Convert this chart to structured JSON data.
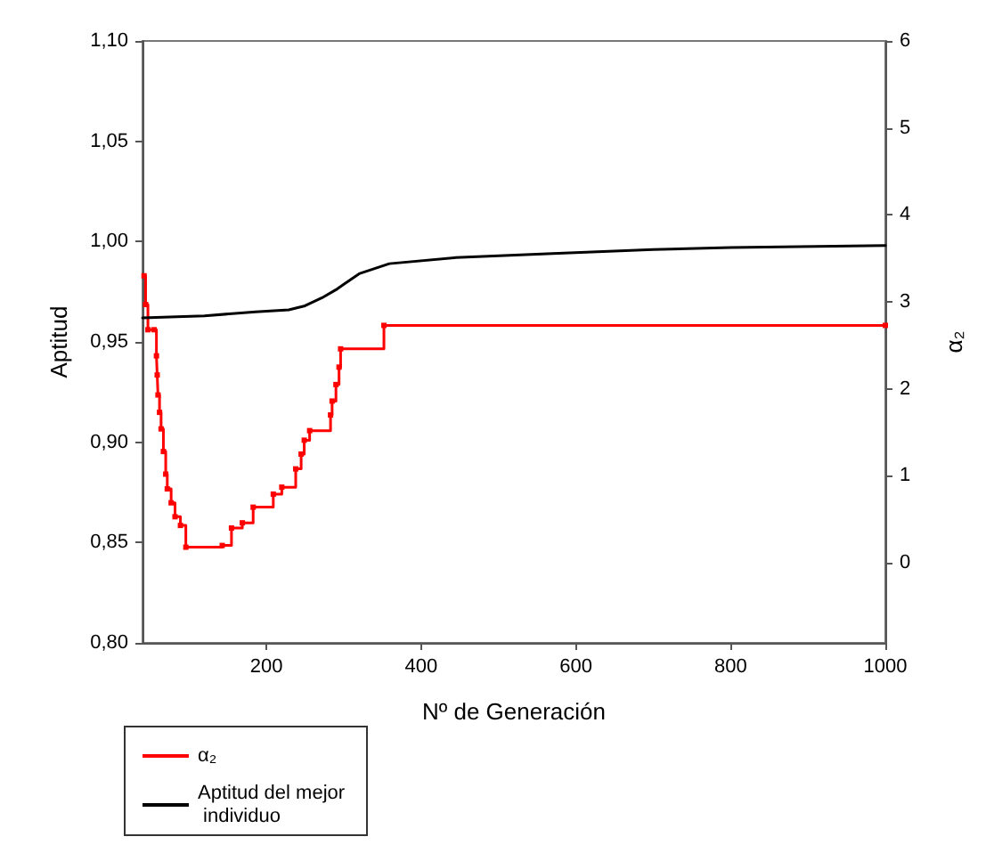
{
  "chart_data": {
    "type": "line",
    "xlabel": "Nº de Generación",
    "ylabel": "Aptitud",
    "y2label": "α₂",
    "xlim": [
      40,
      1000
    ],
    "xticks": [
      200,
      400,
      600,
      800,
      1000
    ],
    "ylim": [
      0.8,
      1.1
    ],
    "yticks": [
      {
        "value": 0.8,
        "label": "0,80"
      },
      {
        "value": 0.85,
        "label": "0,85"
      },
      {
        "value": 0.9,
        "label": "0,90"
      },
      {
        "value": 0.95,
        "label": "0,95"
      },
      {
        "value": 1.0,
        "label": "1,00"
      },
      {
        "value": 1.05,
        "label": "1,05"
      },
      {
        "value": 1.1,
        "label": "1,10"
      }
    ],
    "y2lim": [
      -0.92,
      6
    ],
    "y2ticks": [
      0,
      1,
      2,
      3,
      4,
      5,
      6
    ],
    "grid": false,
    "legend": "bottom left",
    "line_style": "solid",
    "series": [
      {
        "name": "α₂",
        "color": "#ff0000",
        "type": "step",
        "axis": "y2",
        "marker": "square",
        "x": [
          42,
          44,
          47,
          55,
          58,
          59,
          60,
          62,
          64,
          67,
          70,
          72,
          77,
          82,
          89,
          96,
          143,
          155,
          169,
          183,
          209,
          220,
          238,
          245,
          249,
          256,
          283,
          285,
          290,
          294,
          296,
          352,
          1000
        ],
        "values": [
          3.3,
          2.97,
          2.68,
          2.68,
          2.38,
          2.16,
          1.93,
          1.73,
          1.54,
          1.28,
          1.02,
          0.85,
          0.69,
          0.53,
          0.43,
          0.18,
          0.2,
          0.4,
          0.46,
          0.64,
          0.79,
          0.87,
          1.08,
          1.25,
          1.41,
          1.52,
          1.7,
          1.86,
          2.05,
          2.25,
          2.46,
          2.73,
          2.73
        ]
      },
      {
        "name": "Aptitud del mejor individuo",
        "color": "#000000",
        "marker": "none",
        "x": [
          40,
          120,
          186,
          229,
          250,
          272,
          290,
          301,
          320,
          359,
          445,
          570,
          700,
          800,
          1000
        ],
        "values": [
          0.962,
          0.963,
          0.965,
          0.966,
          0.968,
          0.972,
          0.976,
          0.979,
          0.984,
          0.989,
          0.992,
          0.994,
          0.996,
          0.997,
          0.998
        ]
      }
    ]
  }
}
